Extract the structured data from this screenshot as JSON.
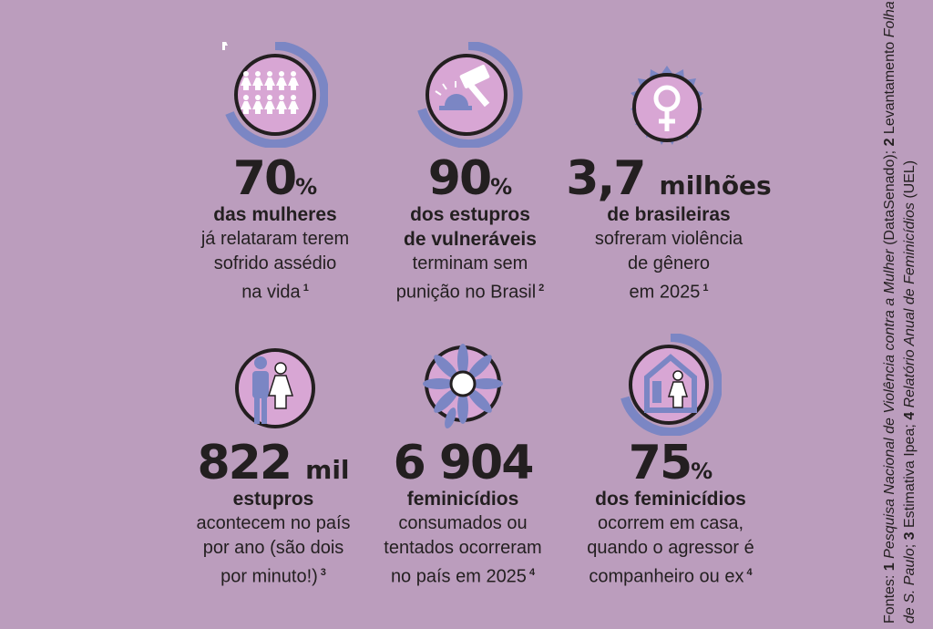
{
  "colors": {
    "background": "#bb9dbd",
    "ring": "#7b86c4",
    "circle": "#d8a6d4",
    "text": "#231f20"
  },
  "stats": [
    {
      "icon": "women-group-icon",
      "number": "70",
      "unit": "%",
      "bold": [
        "das mulheres"
      ],
      "text": [
        "já relataram terem",
        "sofrido assédio",
        "na vida"
      ],
      "note": "1",
      "ring_fraction": 0.7
    },
    {
      "icon": "gavel-icon",
      "number": "90",
      "unit": "%",
      "bold": [
        "dos estupros",
        "de vulneráveis"
      ],
      "text": [
        "terminam sem",
        "punição no Brasil"
      ],
      "note": "2",
      "ring_fraction": 0.9
    },
    {
      "icon": "female-symbol-icon",
      "number": "3,7",
      "unit": "milhões",
      "bold": [
        "de brasileiras"
      ],
      "text": [
        "sofreram violência",
        "de gênero",
        "em 2025"
      ],
      "note": "1"
    },
    {
      "icon": "man-woman-icon",
      "number": "822",
      "unit": "mil",
      "bold": [
        "estupros"
      ],
      "text": [
        "acontecem no país",
        "por ano (são dois",
        "por minuto!)"
      ],
      "note": "3"
    },
    {
      "icon": "flower-icon",
      "number": "6 904",
      "unit": "",
      "bold": [
        "feminicídios"
      ],
      "text": [
        "consumados ou",
        "tentados ocorreram",
        "no país em 2025"
      ],
      "note": "4"
    },
    {
      "icon": "house-woman-icon",
      "number": "75",
      "unit": "%",
      "bold": [
        "dos feminicídios"
      ],
      "text": [
        "ocorrem em casa,",
        "quando o agressor é",
        "companheiro ou ex"
      ],
      "note": "4",
      "ring_fraction": 0.75
    }
  ],
  "sources": {
    "prefix": "Fontes: ",
    "n1": "1 ",
    "s1": "Pesquisa Nacional de Violência contra a Mulher",
    "s1b": " (DataSenado); ",
    "n2": "2 ",
    "s2": "Levantamento ",
    "s2i": "Folha de S. Paulo",
    "s2b": "; ",
    "n3": "3 ",
    "s3": "Estimativa Ipea; ",
    "n4": "4 ",
    "s4": "Relatório Anual de Feminicídios",
    "s4b": " (UEL)"
  }
}
